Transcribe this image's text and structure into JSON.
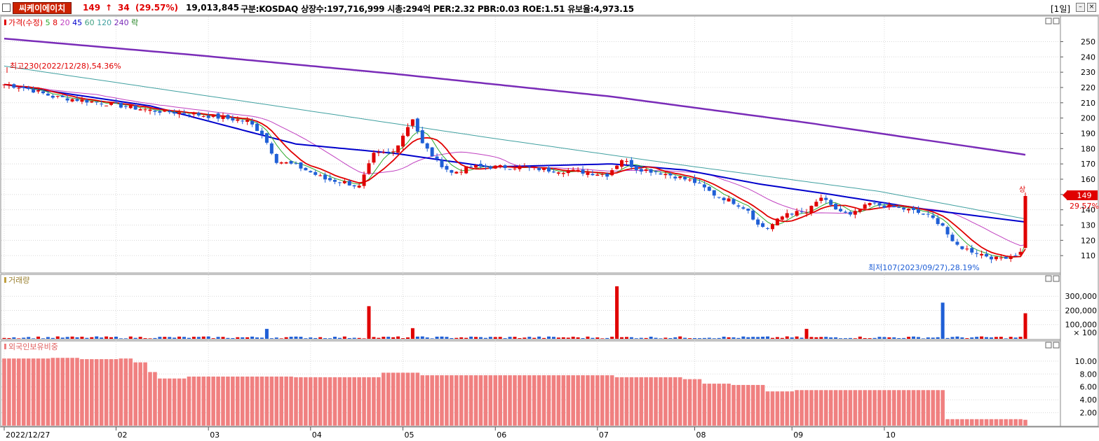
{
  "header": {
    "stock_name": "씨케이에이치",
    "price": "149",
    "arrow": "↑",
    "change": "34",
    "change_pct": "(29.57%)",
    "volume": "19,013,845",
    "info": "구분:KOSDAQ 상장수:197,716,999 시총:294억 PER:2.32 PBR:0.03 ROE:1.51 유보율:4,973.15",
    "period": "[1일]"
  },
  "colors": {
    "up": "#e00000",
    "down": "#1f5fd6",
    "ma5": "#2eaa2e",
    "ma8": "#e00000",
    "ma20": "#c040c0",
    "ma45": "#0000cc",
    "ma60": "#40a080",
    "ma240": "#7a2cb8",
    "foreign": "#f08080"
  },
  "chart_data": [
    {
      "type": "candlestick",
      "legend": [
        {
          "text": "가격(수정)",
          "color": "#e00000"
        },
        {
          "text": "5",
          "color": "#2eaa2e"
        },
        {
          "text": "8",
          "color": "#e00000"
        },
        {
          "text": "20",
          "color": "#c040c0"
        },
        {
          "text": "45",
          "color": "#0000cc"
        },
        {
          "text": "60",
          "color": "#40a080"
        },
        {
          "text": "120",
          "color": "#40a0a0"
        },
        {
          "text": "240",
          "color": "#7a2cb8"
        },
        {
          "text": "락",
          "color": "#208020"
        }
      ],
      "x_ticks": [
        "2022/12/27",
        "02",
        "03",
        "04",
        "05",
        "06",
        "07",
        "08",
        "09",
        "10"
      ],
      "y_ticks": [
        110,
        120,
        130,
        140,
        150,
        160,
        170,
        180,
        190,
        200,
        210,
        220,
        230,
        240,
        250
      ],
      "ylim": [
        100,
        258
      ],
      "high_annotation": "최고230(2022/12/28),54.36%",
      "low_annotation": "최저107(2023/09/27),28.19%",
      "upper_limit_label": "상",
      "last_price_label": "149",
      "last_pct_label": "29.57%",
      "keypoints": [
        [
          0,
          222
        ],
        [
          4,
          220
        ],
        [
          10,
          214
        ],
        [
          20,
          210
        ],
        [
          30,
          205
        ],
        [
          38,
          203
        ],
        [
          45,
          200
        ],
        [
          50,
          198
        ],
        [
          53,
          190
        ],
        [
          56,
          172
        ],
        [
          60,
          169
        ],
        [
          66,
          160
        ],
        [
          70,
          158
        ],
        [
          73,
          155
        ],
        [
          76,
          176
        ],
        [
          80,
          178
        ],
        [
          84,
          200
        ],
        [
          86,
          183
        ],
        [
          89,
          172
        ],
        [
          92,
          164
        ],
        [
          96,
          168
        ],
        [
          100,
          168
        ],
        [
          106,
          168
        ],
        [
          112,
          166
        ],
        [
          118,
          165
        ],
        [
          124,
          163
        ],
        [
          127,
          173
        ],
        [
          130,
          167
        ],
        [
          134,
          165
        ],
        [
          138,
          162
        ],
        [
          142,
          158
        ],
        [
          146,
          150
        ],
        [
          150,
          145
        ],
        [
          153,
          140
        ],
        [
          155,
          130
        ],
        [
          157,
          128
        ],
        [
          161,
          138
        ],
        [
          165,
          138
        ],
        [
          168,
          148
        ],
        [
          170,
          142
        ],
        [
          174,
          136
        ],
        [
          178,
          144
        ],
        [
          182,
          142
        ],
        [
          186,
          140
        ],
        [
          190,
          136
        ],
        [
          193,
          130
        ],
        [
          195,
          118
        ],
        [
          198,
          114
        ],
        [
          201,
          111
        ],
        [
          204,
          108
        ],
        [
          207,
          110
        ],
        [
          209,
          112
        ],
        [
          210,
          149
        ]
      ],
      "ma240": [
        [
          0,
          252
        ],
        [
          40,
          241
        ],
        [
          80,
          229
        ],
        [
          125,
          214
        ],
        [
          165,
          197
        ],
        [
          210,
          176
        ]
      ],
      "ma120": [
        [
          0,
          234
        ],
        [
          60,
          206
        ],
        [
          100,
          187
        ],
        [
          140,
          169
        ],
        [
          180,
          152
        ],
        [
          210,
          134
        ]
      ],
      "ma45": [
        [
          0,
          222
        ],
        [
          30,
          208
        ],
        [
          60,
          183
        ],
        [
          80,
          177
        ],
        [
          100,
          168
        ],
        [
          125,
          170
        ],
        [
          140,
          166
        ],
        [
          155,
          157
        ],
        [
          170,
          150
        ],
        [
          190,
          140
        ],
        [
          210,
          132
        ]
      ],
      "volume": {
        "label": "거래량",
        "y_ticks": [
          "300,000",
          "200,000",
          "100,000"
        ],
        "unit": "× 100",
        "ylim": [
          0,
          380000
        ],
        "spikes": [
          [
            54,
            70000
          ],
          [
            75,
            230000
          ],
          [
            84,
            75000
          ],
          [
            126,
            370000
          ],
          [
            165,
            70000
          ],
          [
            193,
            255000
          ],
          [
            210,
            180000
          ]
        ]
      },
      "foreign": {
        "label": "외국인보유비중",
        "y_ticks": [
          "10.00",
          "8.00",
          "6.00",
          "4.00",
          "2.00"
        ],
        "ylim": [
          0,
          11.5
        ],
        "steps": [
          [
            0,
            10.4
          ],
          [
            10,
            10.5
          ],
          [
            16,
            10.3
          ],
          [
            24,
            10.4
          ],
          [
            27,
            9.8
          ],
          [
            30,
            8.3
          ],
          [
            32,
            7.3
          ],
          [
            38,
            7.6
          ],
          [
            60,
            7.5
          ],
          [
            78,
            8.2
          ],
          [
            86,
            7.8
          ],
          [
            126,
            7.5
          ],
          [
            140,
            7.2
          ],
          [
            144,
            6.5
          ],
          [
            150,
            6.3
          ],
          [
            157,
            5.3
          ],
          [
            163,
            5.5
          ],
          [
            194,
            1.0
          ],
          [
            210,
            0.9
          ]
        ]
      }
    }
  ]
}
